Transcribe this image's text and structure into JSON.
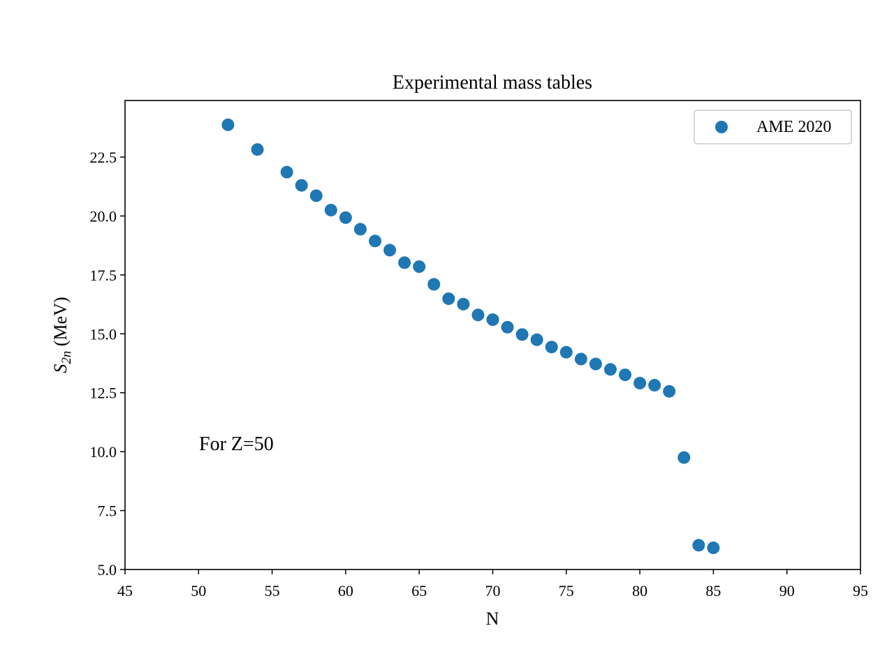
{
  "chart_data": {
    "type": "scatter",
    "title": "Experimental mass tables",
    "xlabel": "N",
    "ylabel_main": "S",
    "ylabel_sub": "2n",
    "ylabel_unit": " (MeV)",
    "xlim": [
      45,
      95
    ],
    "ylim": [
      5.0,
      24.9
    ],
    "xticks": [
      45,
      50,
      55,
      60,
      65,
      70,
      75,
      80,
      85,
      90,
      95
    ],
    "yticks": [
      5.0,
      7.5,
      10.0,
      12.5,
      15.0,
      17.5,
      20.0,
      22.5
    ],
    "grid": false,
    "legend_position": "top-right",
    "annotation": "For Z=50",
    "series": [
      {
        "name": "AME 2020",
        "color": "#1f77b4",
        "points": [
          {
            "x": 52,
            "y": 23.87
          },
          {
            "x": 54,
            "y": 22.82
          },
          {
            "x": 56,
            "y": 21.86
          },
          {
            "x": 57,
            "y": 21.3
          },
          {
            "x": 58,
            "y": 20.86
          },
          {
            "x": 59,
            "y": 20.25
          },
          {
            "x": 60,
            "y": 19.93
          },
          {
            "x": 61,
            "y": 19.44
          },
          {
            "x": 62,
            "y": 18.94
          },
          {
            "x": 63,
            "y": 18.55
          },
          {
            "x": 64,
            "y": 18.02
          },
          {
            "x": 65,
            "y": 17.85
          },
          {
            "x": 66,
            "y": 17.1
          },
          {
            "x": 67,
            "y": 16.49
          },
          {
            "x": 68,
            "y": 16.26
          },
          {
            "x": 69,
            "y": 15.8
          },
          {
            "x": 70,
            "y": 15.6
          },
          {
            "x": 71,
            "y": 15.28
          },
          {
            "x": 72,
            "y": 14.97
          },
          {
            "x": 73,
            "y": 14.75
          },
          {
            "x": 74,
            "y": 14.44
          },
          {
            "x": 75,
            "y": 14.22
          },
          {
            "x": 76,
            "y": 13.93
          },
          {
            "x": 77,
            "y": 13.72
          },
          {
            "x": 78,
            "y": 13.49
          },
          {
            "x": 79,
            "y": 13.26
          },
          {
            "x": 80,
            "y": 12.91
          },
          {
            "x": 81,
            "y": 12.82
          },
          {
            "x": 82,
            "y": 12.56
          },
          {
            "x": 83,
            "y": 9.75
          },
          {
            "x": 84,
            "y": 6.03
          },
          {
            "x": 85,
            "y": 5.92
          }
        ]
      }
    ]
  }
}
